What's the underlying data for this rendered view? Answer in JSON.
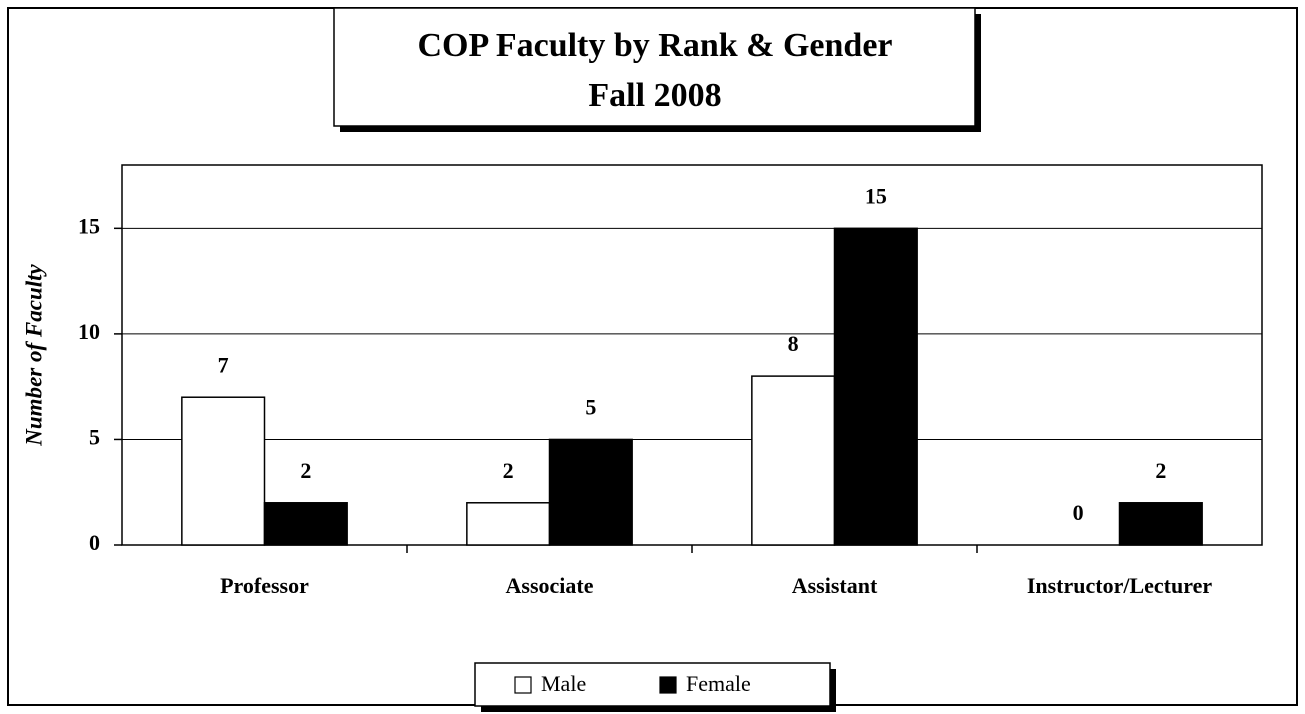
{
  "chart_data": {
    "type": "bar",
    "title": "COP Faculty by Rank & Gender",
    "subtitle": "Fall 2008",
    "y_label": "Number of Faculty",
    "categories": [
      "Professor",
      "Associate",
      "Assistant",
      "Instructor/Lecturer"
    ],
    "series": [
      {
        "name": "Male",
        "color": "#ffffff",
        "values": [
          7,
          2,
          8,
          0
        ]
      },
      {
        "name": "Female",
        "color": "#000000",
        "values": [
          2,
          5,
          15,
          2
        ]
      }
    ],
    "ylim": [
      0,
      18
    ],
    "yticks": [
      0,
      5,
      10,
      15
    ],
    "grid": true,
    "legend": "bottom"
  }
}
